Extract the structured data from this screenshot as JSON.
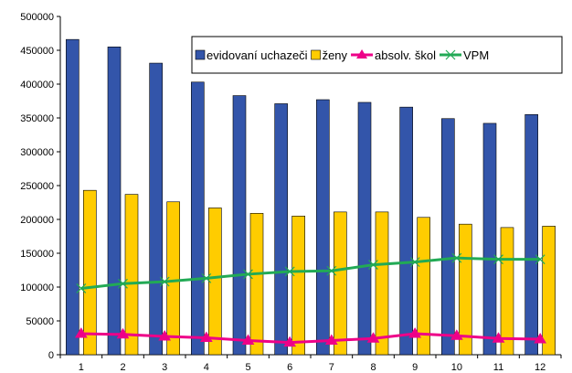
{
  "chart_data": {
    "type": "bar",
    "title": "",
    "xlabel": "",
    "ylabel": "",
    "categories": [
      "1",
      "2",
      "3",
      "4",
      "5",
      "6",
      "7",
      "8",
      "9",
      "10",
      "11",
      "12"
    ],
    "ylim": [
      0,
      500000
    ],
    "yticks": [
      0,
      50000,
      100000,
      150000,
      200000,
      250000,
      300000,
      350000,
      400000,
      450000,
      500000
    ],
    "ytick_labels": [
      "0",
      "50000",
      "100000",
      "150000",
      "200000",
      "250000",
      "300000",
      "350000",
      "400000",
      "450000",
      "500000"
    ],
    "grid": false,
    "legend_position": "top-right",
    "series": [
      {
        "name": "evidovaní uchazeči",
        "kind": "bar",
        "color": "#3355aa",
        "values": [
          466000,
          455000,
          431000,
          403000,
          383000,
          371000,
          377000,
          373000,
          366000,
          349000,
          342000,
          355000
        ]
      },
      {
        "name": "ženy",
        "kind": "bar",
        "color": "#ffcc00",
        "values": [
          243000,
          237000,
          226000,
          217000,
          209000,
          205000,
          211000,
          211000,
          203000,
          193000,
          188000,
          190000
        ]
      },
      {
        "name": "absolv. škol",
        "kind": "line",
        "color": "#ee0088",
        "marker": "triangle",
        "values": [
          31000,
          30000,
          27000,
          25000,
          21000,
          18000,
          21000,
          24000,
          31000,
          28000,
          24000,
          23000
        ]
      },
      {
        "name": "VPM",
        "kind": "line",
        "color": "#22aa55",
        "marker": "x",
        "values": [
          98000,
          105000,
          108000,
          113000,
          119000,
          123000,
          124000,
          133000,
          137000,
          143000,
          141000,
          141000
        ]
      }
    ]
  }
}
